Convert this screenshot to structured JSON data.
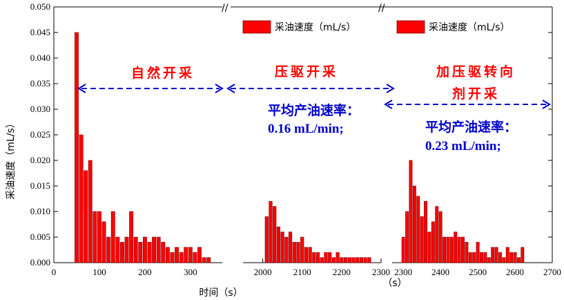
{
  "chart_data": {
    "type": "bar",
    "ylabel": "采油速度（mL/s）",
    "xlabel": "时间（s）",
    "xlabel_right": "（s）",
    "ylim": [
      0,
      0.05
    ],
    "yticks": [
      "0.000",
      "0.005",
      "0.010",
      "0.015",
      "0.020",
      "0.025",
      "0.030",
      "0.035",
      "0.040",
      "0.045",
      "0.050"
    ],
    "legend": [
      "采油速度（mL/s）",
      "采油速度（mL/s）"
    ],
    "colors": {
      "bar": "#ff0000",
      "bar_edge": "#7a0000",
      "arrow": "#0000cc",
      "phase_text": "#ff0000",
      "rate_text": "#0000cc"
    },
    "segments": [
      {
        "name": "natural",
        "xlim": [
          0,
          370
        ],
        "xticks": [
          "0",
          "100",
          "200",
          "300"
        ],
        "x": [
          50,
          60,
          70,
          80,
          90,
          100,
          110,
          120,
          130,
          140,
          150,
          160,
          170,
          180,
          190,
          200,
          210,
          220,
          230,
          240,
          250,
          260,
          270,
          280,
          290,
          300,
          310,
          320,
          330,
          340
        ],
        "values": [
          0.045,
          0.025,
          0.018,
          0.02,
          0.01,
          0.01,
          0.008,
          0.005,
          0.01,
          0.005,
          0.004,
          0.005,
          0.01,
          0.005,
          0.004,
          0.005,
          0.004,
          0.005,
          0.005,
          0.004,
          0.003,
          0.002,
          0.003,
          0.002,
          0.003,
          0.003,
          0.002,
          0.003,
          0.001,
          0.001
        ]
      },
      {
        "name": "water-drive",
        "xlim": [
          1950,
          2300
        ],
        "xticks": [
          "2000",
          "2100",
          "2200",
          "2300"
        ],
        "x": [
          2010,
          2020,
          2030,
          2040,
          2050,
          2060,
          2070,
          2080,
          2090,
          2100,
          2110,
          2120,
          2130,
          2140,
          2150,
          2160,
          2170,
          2180,
          2190,
          2200,
          2210,
          2220,
          2230,
          2240,
          2250,
          2260,
          2270
        ],
        "values": [
          0.009,
          0.012,
          0.011,
          0.007,
          0.006,
          0.005,
          0.006,
          0.004,
          0.004,
          0.005,
          0.003,
          0.003,
          0.002,
          0.002,
          0.001,
          0.002,
          0.002,
          0.001,
          0.002,
          0.001,
          0.001,
          0.001,
          0.001,
          0.001,
          0.001,
          0.001,
          0.001
        ]
      },
      {
        "name": "agent-drive",
        "xlim": [
          2270,
          2700
        ],
        "xticks": [
          "2300",
          "2400",
          "2500",
          "2600",
          "2700"
        ],
        "x": [
          2300,
          2310,
          2320,
          2330,
          2340,
          2350,
          2360,
          2370,
          2380,
          2390,
          2400,
          2410,
          2420,
          2430,
          2440,
          2450,
          2460,
          2470,
          2480,
          2490,
          2500,
          2510,
          2520,
          2530,
          2540,
          2550,
          2560,
          2570,
          2580,
          2590,
          2600,
          2610,
          2620
        ],
        "values": [
          0.005,
          0.01,
          0.02,
          0.015,
          0.013,
          0.009,
          0.012,
          0.006,
          0.008,
          0.011,
          0.01,
          0.005,
          0.005,
          0.005,
          0.006,
          0.005,
          0.005,
          0.004,
          0.002,
          0.002,
          0.004,
          0.002,
          0.002,
          0.001,
          0.003,
          0.003,
          0.002,
          0.001,
          0.003,
          0.002,
          0.002,
          0.001,
          0.003
        ]
      }
    ],
    "annotations": {
      "phase1": "自然开采",
      "phase2": "压驱开采",
      "phase3_line1": "加压驱转向",
      "phase3_line2": "剂开采",
      "rate_label": "平均产油速率：",
      "rate2": "0.16 mL/min;",
      "rate3": "0.23 mL/min;"
    },
    "break_mark": "//"
  }
}
